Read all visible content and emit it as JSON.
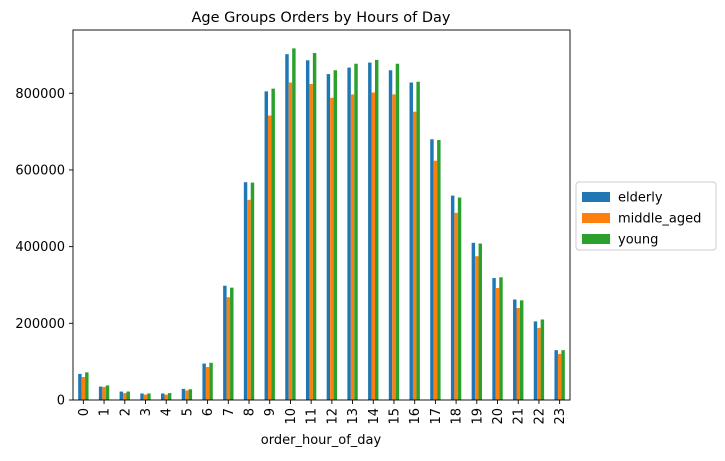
{
  "chart_data": {
    "type": "bar",
    "title": "Age Groups Orders by Hours of Day",
    "xlabel": "order_hour_of_day",
    "ylabel": "",
    "categories": [
      "0",
      "1",
      "2",
      "3",
      "4",
      "5",
      "6",
      "7",
      "8",
      "9",
      "10",
      "11",
      "12",
      "13",
      "14",
      "15",
      "16",
      "17",
      "18",
      "19",
      "20",
      "21",
      "22",
      "23"
    ],
    "ylim": [
      0,
      965000
    ],
    "yticks": [
      0,
      200000,
      400000,
      600000,
      800000
    ],
    "ytick_labels": [
      "0",
      "200000",
      "400000",
      "600000",
      "800000"
    ],
    "grid": false,
    "legend_position": "center-right-outside",
    "series": [
      {
        "name": "elderly",
        "color": "#1f77b4",
        "values": [
          68000,
          35000,
          22000,
          17000,
          17000,
          29000,
          95000,
          298000,
          568000,
          805000,
          902000,
          886000,
          850000,
          867000,
          880000,
          860000,
          828000,
          680000,
          533000,
          410000,
          318000,
          262000,
          205000,
          130000
        ]
      },
      {
        "name": "middle_aged",
        "color": "#ff7f0e",
        "values": [
          60000,
          34000,
          18000,
          14000,
          14000,
          25000,
          86000,
          268000,
          522000,
          742000,
          828000,
          824000,
          788000,
          797000,
          802000,
          797000,
          752000,
          624000,
          488000,
          375000,
          292000,
          240000,
          188000,
          120000
        ]
      },
      {
        "name": "young",
        "color": "#2ca02c",
        "values": [
          72000,
          38000,
          22000,
          17000,
          18000,
          28000,
          97000,
          293000,
          567000,
          812000,
          917000,
          905000,
          860000,
          877000,
          887000,
          877000,
          830000,
          678000,
          528000,
          408000,
          320000,
          260000,
          210000,
          130000
        ]
      }
    ]
  }
}
